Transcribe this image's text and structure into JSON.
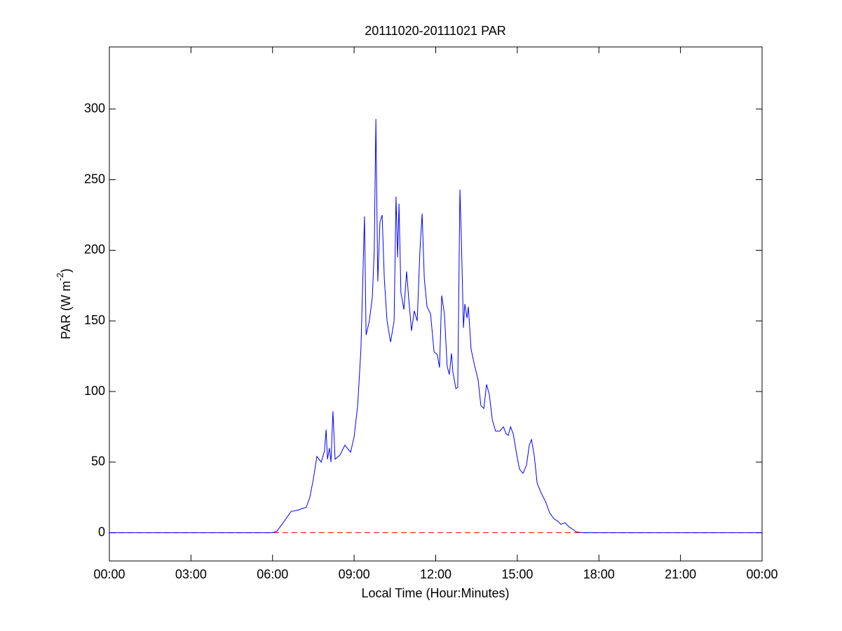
{
  "chart_data": {
    "type": "line",
    "title": "20111020-20111021 PAR",
    "x_label": "Local Time (Hour:Minutes)",
    "y_label": [
      "PAR (W m",
      "-2",
      ")"
    ],
    "xlim": [
      0,
      24
    ],
    "xticks": [
      {
        "value": 0,
        "label": "00:00"
      },
      {
        "value": 3,
        "label": "03:00"
      },
      {
        "value": 6,
        "label": "06:00"
      },
      {
        "value": 9,
        "label": "09:00"
      },
      {
        "value": 12,
        "label": "12:00"
      },
      {
        "value": 15,
        "label": "15:00"
      },
      {
        "value": 18,
        "label": "18:00"
      },
      {
        "value": 21,
        "label": "21:00"
      },
      {
        "value": 24,
        "label": "00:00"
      }
    ],
    "ylim": [
      -20,
      344
    ],
    "yticks": [
      0,
      50,
      100,
      150,
      200,
      250,
      300
    ],
    "grid": false,
    "series": [
      {
        "color": "#0000ff",
        "dash": false,
        "x": [
          0,
          6.0,
          6.16,
          6.42,
          6.68,
          6.93,
          7.24,
          7.37,
          7.5,
          7.63,
          7.79,
          7.91,
          7.97,
          8.02,
          8.09,
          8.15,
          8.22,
          8.3,
          8.48,
          8.66,
          8.87,
          9.0,
          9.13,
          9.25,
          9.38,
          9.44,
          9.56,
          9.67,
          9.74,
          9.8,
          9.82,
          9.87,
          9.95,
          10.03,
          10.11,
          10.21,
          10.34,
          10.47,
          10.54,
          10.6,
          10.65,
          10.72,
          10.83,
          10.93,
          11.01,
          11.11,
          11.21,
          11.32,
          11.42,
          11.5,
          11.58,
          11.68,
          11.81,
          11.94,
          12.06,
          12.14,
          12.22,
          12.32,
          12.42,
          12.5,
          12.58,
          12.63,
          12.74,
          12.81,
          12.89,
          12.94,
          13.02,
          13.07,
          13.15,
          13.2,
          13.3,
          13.41,
          13.56,
          13.66,
          13.77,
          13.87,
          13.97,
          14.08,
          14.2,
          14.36,
          14.49,
          14.59,
          14.67,
          14.75,
          14.85,
          14.98,
          15.08,
          15.21,
          15.34,
          15.44,
          15.52,
          15.62,
          15.73,
          15.88,
          16.04,
          16.19,
          16.34,
          16.5,
          16.6,
          16.76,
          16.91,
          17.07,
          17.17,
          17.38,
          24
        ],
        "values": [
          0,
          0,
          1,
          8,
          15,
          16,
          18,
          25,
          38,
          54,
          50,
          58,
          73,
          52,
          60,
          50,
          86,
          52,
          55,
          62,
          57,
          68,
          90,
          130,
          224,
          140,
          150,
          167,
          200,
          293,
          258,
          178,
          220,
          225,
          180,
          150,
          135,
          150,
          238,
          195,
          233,
          170,
          158,
          185,
          165,
          143,
          157,
          150,
          200,
          226,
          180,
          160,
          155,
          128,
          126,
          117,
          168,
          155,
          118,
          112,
          127,
          114,
          102,
          103,
          243,
          210,
          145,
          162,
          152,
          160,
          130,
          120,
          108,
          90,
          88,
          105,
          98,
          80,
          72,
          72,
          75,
          70,
          69,
          75,
          70,
          55,
          45,
          42,
          48,
          62,
          66,
          55,
          35,
          28,
          22,
          14,
          10,
          8,
          6,
          7,
          4,
          2,
          0.5,
          0,
          0
        ]
      },
      {
        "color": "#ff0000",
        "dash": true,
        "x": [
          0,
          24
        ],
        "values": [
          0,
          0
        ]
      }
    ]
  }
}
